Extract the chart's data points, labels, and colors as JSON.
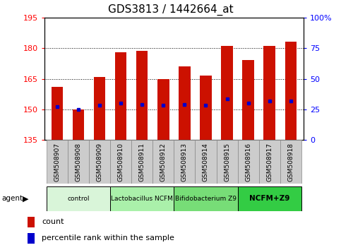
{
  "title": "GDS3813 / 1442664_at",
  "samples": [
    "GSM508907",
    "GSM508908",
    "GSM508909",
    "GSM508910",
    "GSM508911",
    "GSM508912",
    "GSM508913",
    "GSM508914",
    "GSM508915",
    "GSM508916",
    "GSM508917",
    "GSM508918"
  ],
  "bar_values": [
    161,
    150,
    166,
    178,
    178.5,
    165,
    171,
    166.5,
    181,
    174,
    181,
    183
  ],
  "bar_bottom": 135,
  "blue_dot_values": [
    151.5,
    150,
    152,
    153,
    152.5,
    152,
    152.5,
    152,
    155,
    153,
    154,
    154
  ],
  "bar_color": "#cc1100",
  "dot_color": "#0000cc",
  "ylim_left": [
    135,
    195
  ],
  "ylim_right": [
    0,
    100
  ],
  "yticks_left": [
    135,
    150,
    165,
    180,
    195
  ],
  "yticks_right": [
    0,
    25,
    50,
    75,
    100
  ],
  "ytick_right_labels": [
    "0",
    "25",
    "50",
    "75",
    "100%"
  ],
  "groups": [
    {
      "label": "control",
      "start": 0,
      "end": 3,
      "color": "#d9f5d9"
    },
    {
      "label": "Lactobacillus NCFM",
      "start": 3,
      "end": 6,
      "color": "#aaf0aa"
    },
    {
      "label": "Bifidobacterium Z9",
      "start": 6,
      "end": 9,
      "color": "#77dd77"
    },
    {
      "label": "NCFM+Z9",
      "start": 9,
      "end": 12,
      "color": "#33cc44"
    }
  ],
  "legend_count_color": "#cc1100",
  "legend_dot_color": "#0000cc",
  "bar_width": 0.55,
  "title_fontsize": 11,
  "tick_fontsize": 8,
  "sample_fontsize": 6.5
}
